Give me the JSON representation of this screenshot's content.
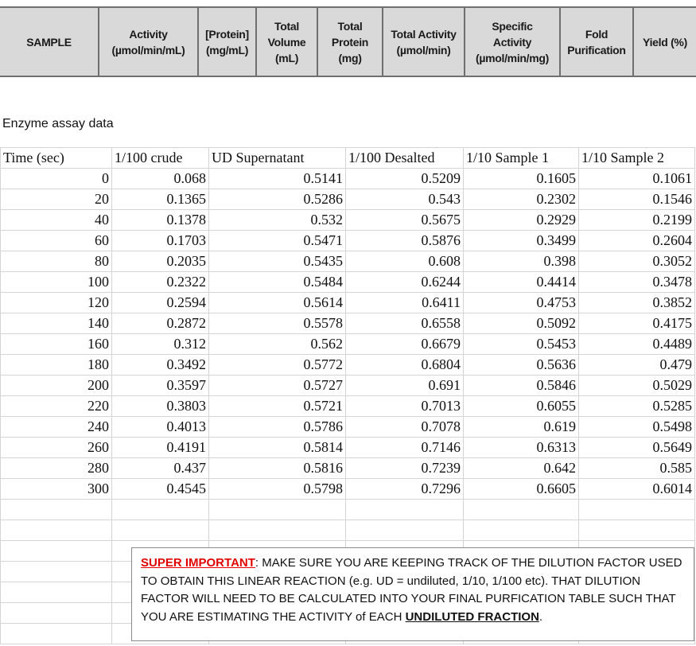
{
  "header_table": {
    "columns": [
      [
        "SAMPLE"
      ],
      [
        "Activity",
        "(µmol/min/mL)"
      ],
      [
        "[Protein]",
        "(mg/mL)"
      ],
      [
        "Total",
        "Volume",
        "(mL)"
      ],
      [
        "Total",
        "Protein",
        "(mg)"
      ],
      [
        "Total Activity",
        "(µmol/min)"
      ],
      [
        "Specific",
        "Activity",
        "(µmol/min/mg)"
      ],
      [
        "Fold",
        "Purification"
      ],
      [
        "Yield (%)"
      ]
    ]
  },
  "section_title": "Enzyme assay data",
  "assay_table": {
    "columns": [
      "Time (sec)",
      "1/100 crude",
      "UD Supernatant",
      "1/100 Desalted",
      "1/10 Sample 1",
      "1/10 Sample 2"
    ],
    "rows": [
      [
        0,
        0.068,
        0.5141,
        0.5209,
        0.1605,
        0.1061
      ],
      [
        20,
        0.1365,
        0.5286,
        0.543,
        0.2302,
        0.1546
      ],
      [
        40,
        0.1378,
        0.532,
        0.5675,
        0.2929,
        0.2199
      ],
      [
        60,
        0.1703,
        0.5471,
        0.5876,
        0.3499,
        0.2604
      ],
      [
        80,
        0.2035,
        0.5435,
        0.608,
        0.398,
        0.3052
      ],
      [
        100,
        0.2322,
        0.5484,
        0.6244,
        0.4414,
        0.3478
      ],
      [
        120,
        0.2594,
        0.5614,
        0.6411,
        0.4753,
        0.3852
      ],
      [
        140,
        0.2872,
        0.5578,
        0.6558,
        0.5092,
        0.4175
      ],
      [
        160,
        0.312,
        0.562,
        0.6679,
        0.5453,
        0.4489
      ],
      [
        180,
        0.3492,
        0.5772,
        0.6804,
        0.5636,
        0.479
      ],
      [
        200,
        0.3597,
        0.5727,
        0.691,
        0.5846,
        0.5029
      ],
      [
        220,
        0.3803,
        0.5721,
        0.7013,
        0.6055,
        0.5285
      ],
      [
        240,
        0.4013,
        0.5786,
        0.7078,
        0.619,
        0.5498
      ],
      [
        260,
        0.4191,
        0.5814,
        0.7146,
        0.6313,
        0.5649
      ],
      [
        280,
        0.437,
        0.5816,
        0.7239,
        0.642,
        0.585
      ],
      [
        300,
        0.4545,
        0.5798,
        0.7296,
        0.6605,
        0.6014
      ]
    ]
  },
  "note": {
    "alert": "SUPER IMPORTANT",
    "body": ": MAKE SURE YOU ARE KEEPING TRACK OF THE DILUTION FACTOR USED TO OBTAIN THIS LINEAR REACTION (e.g. UD = undiluted, 1/10, 1/100 etc). THAT DILUTION FACTOR WILL NEED TO BE CALCULATED INTO YOUR FINAL PURFICATION TABLE SUCH THAT YOU ARE ESTIMATING THE ACTIVITY of EACH ",
    "emphasis": "UNDILUTED FRACTION",
    "end": "."
  }
}
